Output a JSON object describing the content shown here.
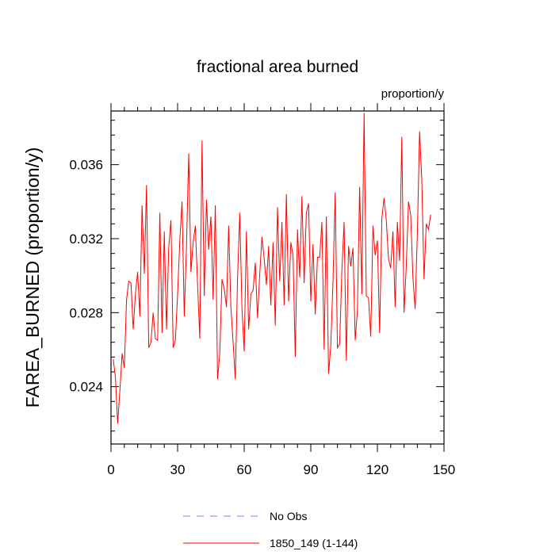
{
  "chart_data": {
    "type": "line",
    "title": "fractional area burned",
    "units_label": "proportion/y",
    "xlabel": "",
    "ylabel": "FAREA_BURNED  (proportion/y)",
    "xlim": [
      0,
      150
    ],
    "ylim": [
      0.0209,
      0.0389
    ],
    "x_ticks": [
      0,
      30,
      60,
      90,
      120,
      150
    ],
    "x_tick_labels": [
      "0",
      "30",
      "60",
      "90",
      "120",
      "150"
    ],
    "y_ticks": [
      0.024,
      0.028,
      0.032,
      0.036
    ],
    "y_tick_labels": [
      "0.024",
      "0.028",
      "0.032",
      "0.036"
    ],
    "series": [
      {
        "name": "1850_149 (1-144)",
        "color": "#ff0000",
        "x": [
          1,
          2,
          3,
          4,
          5,
          6,
          7,
          8,
          9,
          10,
          11,
          12,
          13,
          14,
          15,
          16,
          17,
          18,
          19,
          20,
          21,
          22,
          23,
          24,
          25,
          26,
          27,
          28,
          29,
          30,
          31,
          32,
          33,
          34,
          35,
          36,
          37,
          38,
          39,
          40,
          41,
          42,
          43,
          44,
          45,
          46,
          47,
          48,
          49,
          50,
          51,
          52,
          53,
          54,
          55,
          56,
          57,
          58,
          59,
          60,
          61,
          62,
          63,
          64,
          65,
          66,
          67,
          68,
          69,
          70,
          71,
          72,
          73,
          74,
          75,
          76,
          77,
          78,
          79,
          80,
          81,
          82,
          83,
          84,
          85,
          86,
          87,
          88,
          89,
          90,
          91,
          92,
          93,
          94,
          95,
          96,
          97,
          98,
          99,
          100,
          101,
          102,
          103,
          104,
          105,
          106,
          107,
          108,
          109,
          110,
          111,
          112,
          113,
          114,
          115,
          116,
          117,
          118,
          119,
          120,
          121,
          122,
          123,
          124,
          125,
          126,
          127,
          128,
          129,
          130,
          131,
          132,
          133,
          134,
          135,
          136,
          137,
          138,
          139,
          140,
          141,
          142,
          143,
          144
        ],
        "values": [
          0.0255,
          0.0245,
          0.022,
          0.0238,
          0.0258,
          0.025,
          0.0287,
          0.0297,
          0.0296,
          0.0271,
          0.029,
          0.0302,
          0.0278,
          0.0338,
          0.0301,
          0.0349,
          0.0261,
          0.0264,
          0.028,
          0.0266,
          0.0265,
          0.0334,
          0.0269,
          0.0324,
          0.0271,
          0.0315,
          0.033,
          0.0261,
          0.0265,
          0.029,
          0.0319,
          0.034,
          0.0278,
          0.0316,
          0.0366,
          0.0302,
          0.0318,
          0.0327,
          0.0295,
          0.0266,
          0.0373,
          0.0289,
          0.0341,
          0.0314,
          0.0332,
          0.0287,
          0.0338,
          0.0244,
          0.0258,
          0.0298,
          0.0293,
          0.0283,
          0.0327,
          0.0283,
          0.0264,
          0.0244,
          0.0298,
          0.0334,
          0.0282,
          0.0259,
          0.0324,
          0.0271,
          0.029,
          0.0292,
          0.0307,
          0.0277,
          0.0301,
          0.0321,
          0.0309,
          0.0295,
          0.0316,
          0.0284,
          0.0318,
          0.0273,
          0.0337,
          0.0297,
          0.0329,
          0.0284,
          0.0344,
          0.0286,
          0.0318,
          0.0311,
          0.0256,
          0.0325,
          0.0299,
          0.0343,
          0.0296,
          0.0334,
          0.0339,
          0.0286,
          0.0317,
          0.0279,
          0.031,
          0.031,
          0.0329,
          0.026,
          0.0332,
          0.0247,
          0.0262,
          0.0297,
          0.0345,
          0.0261,
          0.0263,
          0.0303,
          0.0329,
          0.0254,
          0.0316,
          0.0305,
          0.0315,
          0.0265,
          0.0281,
          0.0348,
          0.029,
          0.0388,
          0.0289,
          0.0288,
          0.0267,
          0.0327,
          0.0311,
          0.0319,
          0.0269,
          0.0331,
          0.0342,
          0.033,
          0.0309,
          0.0304,
          0.0324,
          0.0283,
          0.0329,
          0.0308,
          0.0375,
          0.028,
          0.0305,
          0.034,
          0.0333,
          0.0299,
          0.0282,
          0.0323,
          0.0378,
          0.0352,
          0.0298,
          0.0328,
          0.0325,
          0.0333
        ]
      }
    ],
    "legend": [
      {
        "label": "No Obs",
        "color": "#8080ff",
        "dash": "dashed"
      },
      {
        "label": "1850_149 (1-144)",
        "color": "#ff0000",
        "dash": "solid"
      }
    ],
    "legend_position": "bottom-center",
    "grid": false
  }
}
